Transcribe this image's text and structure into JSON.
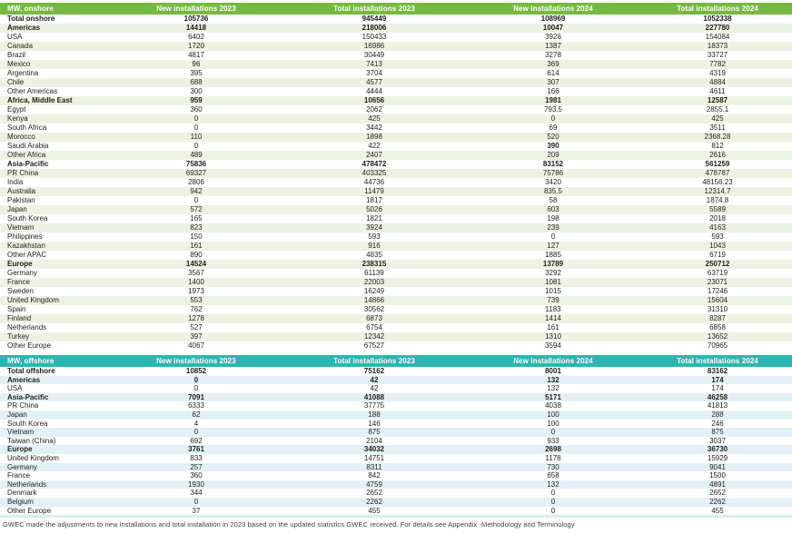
{
  "colors": {
    "onshore_header": "#77b843",
    "onshore_stripe": "#eef2e2",
    "offshore_header": "#2cb6b0",
    "offshore_stripe": "#e3f1f7"
  },
  "tables": {
    "onshore": {
      "columns": [
        "MW, onshore",
        "New installations 2023",
        "Total installations 2023",
        "New installations 2024",
        "Total installations 2024"
      ],
      "rows": [
        {
          "label": "Total onshore",
          "values": [
            "105736",
            "945449",
            "108969",
            "1052338"
          ],
          "bold": true
        },
        {
          "label": "Americas",
          "values": [
            "14418",
            "218006",
            "10047",
            "227780"
          ],
          "bold": true
        },
        {
          "label": "USA",
          "values": [
            "6402",
            "150433",
            "3926",
            "154084"
          ],
          "bold": false
        },
        {
          "label": "Canada",
          "values": [
            "1720",
            "16986",
            "1387",
            "18373"
          ],
          "bold": false
        },
        {
          "label": "Brazil",
          "values": [
            "4817",
            "30449",
            "3278",
            "33727"
          ],
          "bold": false
        },
        {
          "label": "Mexico",
          "values": [
            "96",
            "7413",
            "369",
            "7782"
          ],
          "bold": false
        },
        {
          "label": "Argentina",
          "values": [
            "395",
            "3704",
            "614",
            "4319"
          ],
          "bold": false
        },
        {
          "label": "Chile",
          "values": [
            "688",
            "4577",
            "307",
            "4884"
          ],
          "bold": false
        },
        {
          "label": "Other Americas",
          "values": [
            "300",
            "4444",
            "166",
            "4611"
          ],
          "bold": false
        },
        {
          "label": "Africa, Middle East",
          "values": [
            "959",
            "10656",
            "1981",
            "12587"
          ],
          "bold": true
        },
        {
          "label": "Egypt",
          "values": [
            "360",
            "2062",
            "793.5",
            "2855.1"
          ],
          "bold": false
        },
        {
          "label": "Kenya",
          "values": [
            "0",
            "425",
            "0",
            "425"
          ],
          "bold": false
        },
        {
          "label": "South Africa",
          "values": [
            "0",
            "3442",
            "69",
            "3511"
          ],
          "bold": false
        },
        {
          "label": "Morocco",
          "values": [
            "110",
            "1898",
            "520",
            "2368.28"
          ],
          "bold": false
        },
        {
          "label": "Saudi Arabia",
          "values": [
            "0",
            "422",
            "390",
            "812"
          ],
          "bold": false,
          "bold_cells": [
            2
          ]
        },
        {
          "label": "Other Africa",
          "values": [
            "489",
            "2407",
            "209",
            "2616"
          ],
          "bold": false
        },
        {
          "label": "Asia-Pacific",
          "values": [
            "75836",
            "478472",
            "83152",
            "561259"
          ],
          "bold": true
        },
        {
          "label": "PR China",
          "values": [
            "69327",
            "403325",
            "75786",
            "478787"
          ],
          "bold": false
        },
        {
          "label": "India",
          "values": [
            "2806",
            "44736",
            "3420",
            "48156.23"
          ],
          "bold": false
        },
        {
          "label": "Australia",
          "values": [
            "942",
            "11479",
            "835.5",
            "12314.7"
          ],
          "bold": false
        },
        {
          "label": "Pakistan",
          "values": [
            "0",
            "1817",
            "58",
            "1874.8"
          ],
          "bold": false
        },
        {
          "label": "Japan",
          "values": [
            "572",
            "5026",
            "603",
            "5589"
          ],
          "bold": false
        },
        {
          "label": "South Korea",
          "values": [
            "165",
            "1821",
            "198",
            "2018"
          ],
          "bold": false
        },
        {
          "label": "Vietnam",
          "values": [
            "823",
            "3924",
            "239",
            "4163"
          ],
          "bold": false
        },
        {
          "label": "Philippines",
          "values": [
            "150",
            "593",
            "0",
            "593"
          ],
          "bold": false
        },
        {
          "label": "Kazakhstan",
          "values": [
            "161",
            "916",
            "127",
            "1043"
          ],
          "bold": false
        },
        {
          "label": "Other APAC",
          "values": [
            "890",
            "4835",
            "1885",
            "6719"
          ],
          "bold": false
        },
        {
          "label": "Europe",
          "values": [
            "14524",
            "238315",
            "13789",
            "250712"
          ],
          "bold": true
        },
        {
          "label": "Germany",
          "values": [
            "3567",
            "61139",
            "3292",
            "63719"
          ],
          "bold": false
        },
        {
          "label": "France",
          "values": [
            "1400",
            "22003",
            "1081",
            "23071"
          ],
          "bold": false
        },
        {
          "label": "Sweden",
          "values": [
            "1973",
            "16249",
            "1015",
            "17246"
          ],
          "bold": false
        },
        {
          "label": "United Kingdom",
          "values": [
            "553",
            "14866",
            "739",
            "15604"
          ],
          "bold": false
        },
        {
          "label": "Spain",
          "values": [
            "762",
            "30562",
            "1183",
            "31310"
          ],
          "bold": false
        },
        {
          "label": "Finland",
          "values": [
            "1278",
            "6873",
            "1414",
            "8287"
          ],
          "bold": false
        },
        {
          "label": "Netherlands",
          "values": [
            "527",
            "6754",
            "161",
            "6858"
          ],
          "bold": false
        },
        {
          "label": "Turkey",
          "values": [
            "397",
            "12342",
            "1310",
            "13652"
          ],
          "bold": false
        },
        {
          "label": "Other Europe",
          "values": [
            "4067",
            "67527",
            "3594",
            "70965"
          ],
          "bold": false
        }
      ]
    },
    "offshore": {
      "columns": [
        "MW, offshore",
        "New installations 2023",
        "Total installations 2023",
        "New installations 2024",
        "Total installations 2024"
      ],
      "rows": [
        {
          "label": "Total offshore",
          "values": [
            "10852",
            "75162",
            "8001",
            "83162"
          ],
          "bold": true
        },
        {
          "label": "Americas",
          "values": [
            "0",
            "42",
            "132",
            "174"
          ],
          "bold": true
        },
        {
          "label": "USA",
          "values": [
            "0",
            "42",
            "132",
            "174"
          ],
          "bold": false
        },
        {
          "label": "Asia-Pacific",
          "values": [
            "7091",
            "41088",
            "5171",
            "46258"
          ],
          "bold": true
        },
        {
          "label": "PR China",
          "values": [
            "6333",
            "37775",
            "4038",
            "41813"
          ],
          "bold": false
        },
        {
          "label": "Japan",
          "values": [
            "62",
            "188",
            "100",
            "288"
          ],
          "bold": false
        },
        {
          "label": "South Korea",
          "values": [
            "4",
            "146",
            "100",
            "246"
          ],
          "bold": false
        },
        {
          "label": "Vietnam",
          "values": [
            "0",
            "875",
            "0",
            "875"
          ],
          "bold": false
        },
        {
          "label": "Taiwan (China)",
          "values": [
            "692",
            "2104",
            "933",
            "3037"
          ],
          "bold": false
        },
        {
          "label": "Europe",
          "values": [
            "3761",
            "34032",
            "2698",
            "36730"
          ],
          "bold": true
        },
        {
          "label": "United Kingdom",
          "values": [
            "833",
            "14751",
            "1178",
            "15929"
          ],
          "bold": false
        },
        {
          "label": "Germany",
          "values": [
            "257",
            "8311",
            "730",
            "9041"
          ],
          "bold": false
        },
        {
          "label": "France",
          "values": [
            "360",
            "842",
            "658",
            "1500"
          ],
          "bold": false
        },
        {
          "label": "Netherlands",
          "values": [
            "1930",
            "4759",
            "132",
            "4891"
          ],
          "bold": false
        },
        {
          "label": "Denmark",
          "values": [
            "344",
            "2652",
            "0",
            "2652"
          ],
          "bold": false
        },
        {
          "label": "Belgium",
          "values": [
            "0",
            "2262",
            "0",
            "2262"
          ],
          "bold": false
        },
        {
          "label": "Other Europe",
          "values": [
            "37",
            "455",
            "0",
            "455"
          ],
          "bold": false
        }
      ]
    }
  },
  "footnote": "GWEC made the adjustments to new installations and total installation in 2023 based on the updated statistics GWEC received. For details see Appendix -Methodology and Terminology"
}
